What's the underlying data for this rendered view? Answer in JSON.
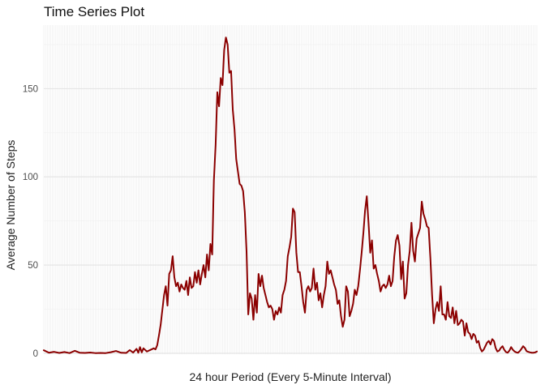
{
  "chart_data": {
    "type": "line",
    "title": "Time Series Plot",
    "xlabel": "24 hour Period (Every 5-Minute Interval)",
    "ylabel": "Average Number of Steps",
    "ylim": [
      -0.5,
      186
    ],
    "y_ticks": [
      0,
      50,
      100,
      150
    ],
    "x_ticks_labels_shown": false,
    "grid": true,
    "legend": "none",
    "series": [
      {
        "color": "#8B0000",
        "x_interval_index_start": 0,
        "x_interval_index_end": 287,
        "points": [
          [
            0,
            1.7
          ],
          [
            3,
            0.3
          ],
          [
            6,
            0.8
          ],
          [
            9,
            0.2
          ],
          [
            12,
            0.7
          ],
          [
            15,
            0.1
          ],
          [
            18,
            1.4
          ],
          [
            21,
            0.3
          ],
          [
            24,
            0.2
          ],
          [
            27,
            0.4
          ],
          [
            30,
            0.1
          ],
          [
            33,
            0.2
          ],
          [
            36,
            0.1
          ],
          [
            39,
            0.6
          ],
          [
            42,
            1.3
          ],
          [
            45,
            0.3
          ],
          [
            48,
            0.2
          ],
          [
            50,
            1.8
          ],
          [
            52,
            0.4
          ],
          [
            54,
            2.5
          ],
          [
            55,
            0.3
          ],
          [
            56,
            3.5
          ],
          [
            57,
            0.5
          ],
          [
            58,
            2.8
          ],
          [
            60,
            1.0
          ],
          [
            62,
            1.9
          ],
          [
            64,
            2.8
          ],
          [
            65,
            2.2
          ],
          [
            66,
            4.5
          ],
          [
            67,
            10.0
          ],
          [
            68,
            16.0
          ],
          [
            70,
            33.0
          ],
          [
            71,
            38.0
          ],
          [
            72,
            27.0
          ],
          [
            73,
            45.0
          ],
          [
            74,
            47.0
          ],
          [
            75,
            55.0
          ],
          [
            76,
            43.0
          ],
          [
            77,
            38.0
          ],
          [
            78,
            40.0
          ],
          [
            79,
            35.0
          ],
          [
            80,
            39.0
          ],
          [
            81,
            37.0
          ],
          [
            82,
            36.0
          ],
          [
            83,
            41.0
          ],
          [
            84,
            33.0
          ],
          [
            85,
            43.0
          ],
          [
            86,
            37.0
          ],
          [
            87,
            38.0
          ],
          [
            88,
            46.0
          ],
          [
            89,
            40.0
          ],
          [
            90,
            47.0
          ],
          [
            91,
            39.0
          ],
          [
            92,
            45.0
          ],
          [
            93,
            50.0
          ],
          [
            94,
            43.0
          ],
          [
            95,
            56.0
          ],
          [
            96,
            47.0
          ],
          [
            97,
            62.0
          ],
          [
            98,
            56.0
          ],
          [
            99,
            98.0
          ],
          [
            100,
            118.0
          ],
          [
            101,
            148.0
          ],
          [
            102,
            140.0
          ],
          [
            103,
            156.0
          ],
          [
            104,
            152.0
          ],
          [
            105,
            172.0
          ],
          [
            106,
            179.0
          ],
          [
            107,
            175.0
          ],
          [
            108,
            159.0
          ],
          [
            109,
            160.0
          ],
          [
            110,
            138.0
          ],
          [
            111,
            127.0
          ],
          [
            112,
            110.0
          ],
          [
            113,
            103.0
          ],
          [
            114,
            96.0
          ],
          [
            115,
            95.0
          ],
          [
            116,
            92.0
          ],
          [
            117,
            80.0
          ],
          [
            118,
            58.0
          ],
          [
            119,
            22.0
          ],
          [
            120,
            34.0
          ],
          [
            121,
            31.0
          ],
          [
            122,
            19.0
          ],
          [
            123,
            33.0
          ],
          [
            124,
            23.0
          ],
          [
            125,
            45.0
          ],
          [
            126,
            38.0
          ],
          [
            127,
            44.0
          ],
          [
            128,
            37.0
          ],
          [
            129,
            33.0
          ],
          [
            130,
            29.0
          ],
          [
            131,
            26.0
          ],
          [
            132,
            27.0
          ],
          [
            133,
            25.0
          ],
          [
            134,
            19.0
          ],
          [
            135,
            24.0
          ],
          [
            136,
            22.0
          ],
          [
            137,
            26.0
          ],
          [
            138,
            23.0
          ],
          [
            139,
            33.0
          ],
          [
            140,
            36.0
          ],
          [
            141,
            41.0
          ],
          [
            142,
            55.0
          ],
          [
            143,
            60.0
          ],
          [
            144,
            66.0
          ],
          [
            145,
            82.0
          ],
          [
            146,
            80.0
          ],
          [
            147,
            57.0
          ],
          [
            148,
            46.0
          ],
          [
            149,
            46.0
          ],
          [
            150,
            38.0
          ],
          [
            151,
            29.0
          ],
          [
            152,
            23.0
          ],
          [
            153,
            36.0
          ],
          [
            154,
            38.0
          ],
          [
            155,
            35.0
          ],
          [
            156,
            37.0
          ],
          [
            157,
            48.0
          ],
          [
            158,
            36.0
          ],
          [
            159,
            40.0
          ],
          [
            160,
            30.0
          ],
          [
            161,
            34.0
          ],
          [
            162,
            26.0
          ],
          [
            163,
            33.0
          ],
          [
            164,
            38.0
          ],
          [
            165,
            52.0
          ],
          [
            166,
            45.0
          ],
          [
            167,
            47.0
          ],
          [
            168,
            43.0
          ],
          [
            169,
            39.0
          ],
          [
            170,
            36.0
          ],
          [
            171,
            28.0
          ],
          [
            172,
            30.0
          ],
          [
            173,
            21.0
          ],
          [
            174,
            15.0
          ],
          [
            175,
            19.0
          ],
          [
            176,
            38.0
          ],
          [
            177,
            35.0
          ],
          [
            178,
            21.0
          ],
          [
            179,
            24.0
          ],
          [
            180,
            28.0
          ],
          [
            181,
            36.0
          ],
          [
            182,
            33.0
          ],
          [
            183,
            38.0
          ],
          [
            184,
            47.0
          ],
          [
            185,
            57.0
          ],
          [
            186,
            68.0
          ],
          [
            187,
            81.0
          ],
          [
            188,
            89.0
          ],
          [
            189,
            74.0
          ],
          [
            190,
            57.0
          ],
          [
            191,
            64.0
          ],
          [
            192,
            48.0
          ],
          [
            193,
            50.0
          ],
          [
            194,
            45.0
          ],
          [
            195,
            41.0
          ],
          [
            196,
            35.0
          ],
          [
            197,
            38.0
          ],
          [
            198,
            39.0
          ],
          [
            199,
            37.0
          ],
          [
            200,
            39.0
          ],
          [
            201,
            44.0
          ],
          [
            202,
            38.0
          ],
          [
            203,
            41.0
          ],
          [
            204,
            55.0
          ],
          [
            205,
            64.0
          ],
          [
            206,
            67.0
          ],
          [
            207,
            61.0
          ],
          [
            208,
            42.0
          ],
          [
            209,
            52.0
          ],
          [
            210,
            31.0
          ],
          [
            211,
            34.0
          ],
          [
            212,
            50.0
          ],
          [
            213,
            58.0
          ],
          [
            214,
            74.0
          ],
          [
            215,
            58.0
          ],
          [
            216,
            52.0
          ],
          [
            217,
            65.0
          ],
          [
            218,
            68.0
          ],
          [
            219,
            71.0
          ],
          [
            220,
            86.0
          ],
          [
            221,
            79.0
          ],
          [
            222,
            76.0
          ],
          [
            223,
            72.0
          ],
          [
            224,
            71.0
          ],
          [
            225,
            54.0
          ],
          [
            226,
            33.0
          ],
          [
            227,
            17.0
          ],
          [
            228,
            25.0
          ],
          [
            229,
            29.0
          ],
          [
            230,
            24.0
          ],
          [
            231,
            38.0
          ],
          [
            232,
            22.0
          ],
          [
            233,
            22.0
          ],
          [
            234,
            19.0
          ],
          [
            235,
            29.0
          ],
          [
            236,
            21.0
          ],
          [
            237,
            20.0
          ],
          [
            238,
            26.0
          ],
          [
            239,
            17.0
          ],
          [
            240,
            24.0
          ],
          [
            241,
            16.0
          ],
          [
            242,
            17.0
          ],
          [
            243,
            19.0
          ],
          [
            244,
            18.0
          ],
          [
            245,
            10.0
          ],
          [
            246,
            17.0
          ],
          [
            247,
            12.0
          ],
          [
            248,
            11.0
          ],
          [
            249,
            8.0
          ],
          [
            250,
            11.0
          ],
          [
            251,
            10.0
          ],
          [
            252,
            6.0
          ],
          [
            253,
            7.0
          ],
          [
            254,
            3.0
          ],
          [
            255,
            1.0
          ],
          [
            256,
            2.0
          ],
          [
            257,
            4.0
          ],
          [
            258,
            6.0
          ],
          [
            259,
            7.0
          ],
          [
            260,
            5.0
          ],
          [
            261,
            8.0
          ],
          [
            262,
            7.0
          ],
          [
            263,
            3.0
          ],
          [
            264,
            1.0
          ],
          [
            265,
            1.5
          ],
          [
            266,
            3.0
          ],
          [
            267,
            4.0
          ],
          [
            268,
            2.0
          ],
          [
            269,
            0.7
          ],
          [
            270,
            0.3
          ],
          [
            271,
            1.5
          ],
          [
            272,
            3.5
          ],
          [
            273,
            2.0
          ],
          [
            274,
            1.0
          ],
          [
            275,
            0.5
          ],
          [
            276,
            0.3
          ],
          [
            277,
            1.2
          ],
          [
            278,
            2.5
          ],
          [
            279,
            4.0
          ],
          [
            280,
            3.0
          ],
          [
            281,
            1.2
          ],
          [
            282,
            0.8
          ],
          [
            283,
            0.5
          ],
          [
            284,
            0.3
          ],
          [
            285,
            0.3
          ],
          [
            286,
            0.5
          ],
          [
            287,
            1.0
          ]
        ]
      }
    ]
  }
}
